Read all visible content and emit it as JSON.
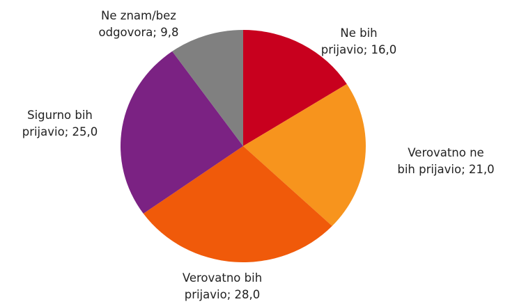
{
  "chart_data": {
    "type": "pie",
    "categories": [
      "Ne bih prijavio",
      "Verovatno ne bih prijavio",
      "Verovatno bih prijavio",
      "Sigurno bih prijavio",
      "Ne znam/bez odgovora"
    ],
    "values": [
      16.0,
      21.0,
      28.0,
      25.0,
      9.8
    ],
    "value_labels": [
      "16,0",
      "21,0",
      "28,0",
      "25,0",
      "9,8"
    ],
    "label_separator": "; ",
    "colors": [
      "#c8001e",
      "#f7941d",
      "#f05a0a",
      "#7b2283",
      "#808080"
    ]
  }
}
